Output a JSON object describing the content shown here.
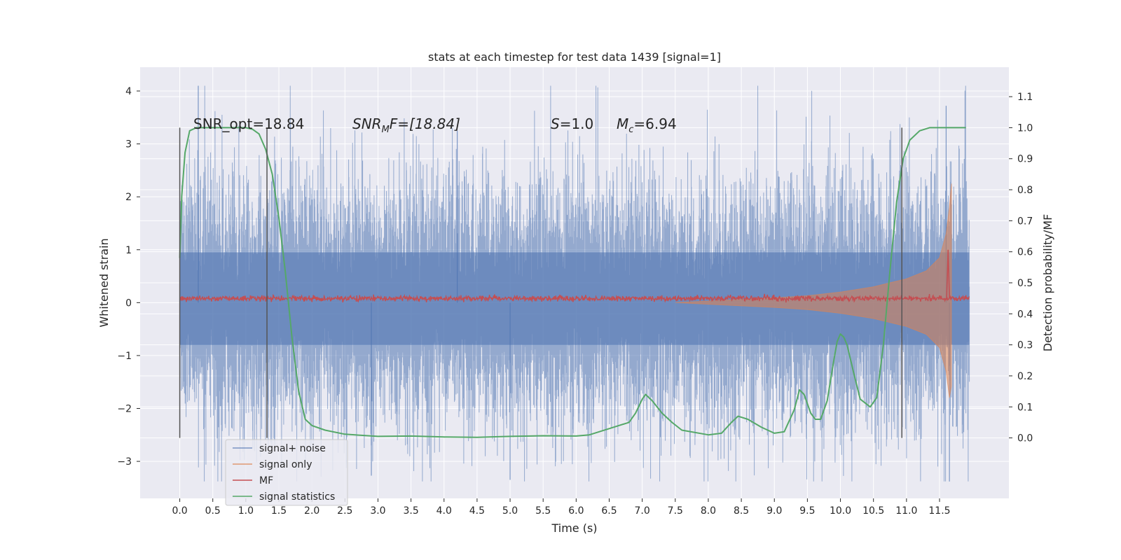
{
  "chart_data": {
    "type": "line",
    "title": "stats at each timestep for test data 1439 [signal=1]",
    "xlabel": "Time (s)",
    "ylabel_left": "Whitened strain",
    "ylabel_right": "Detection probability/MF",
    "xlim": [
      -0.6,
      12.55
    ],
    "ylim_left": [
      -3.7,
      4.45
    ],
    "ylim_right": [
      -0.195,
      1.195
    ],
    "x_ticks": [
      "0.0",
      "0.5",
      "1.0",
      "1.5",
      "2.0",
      "2.5",
      "3.0",
      "3.5",
      "4.0",
      "4.5",
      "5.0",
      "5.5",
      "6.0",
      "6.5",
      "7.0",
      "7.5",
      "8.0",
      "8.5",
      "9.0",
      "9.5",
      "10.0",
      "10.5",
      "11.0",
      "11.5"
    ],
    "y_ticks_left": [
      "−3",
      "−2",
      "−1",
      "0",
      "1",
      "2",
      "3",
      "4"
    ],
    "y_ticks_right": [
      "0.0",
      "0.1",
      "0.2",
      "0.3",
      "0.4",
      "0.5",
      "0.6",
      "0.7",
      "0.8",
      "0.9",
      "1.0",
      "1.1"
    ],
    "grid": true,
    "legend_position": "lower-left",
    "colors": {
      "background": "#eaeaf2",
      "signal_noise": "#4c72b0",
      "signal_only": "#dd8452",
      "mf": "#c44e52",
      "statistics": "#55a868",
      "markers": "#555555"
    },
    "annotations": {
      "snr_opt": "SNR_opt=18.84",
      "snr_mf_name": "SNR",
      "snr_mf_sub": "M",
      "snr_mf_rest": "F=[18.84]",
      "s_name": "S",
      "s_value": "=1.0",
      "mc_name": "M",
      "mc_sub": "c",
      "mc_value": "=6.94"
    },
    "vertical_markers_x": [
      0.0,
      1.32,
      10.93
    ],
    "series": [
      {
        "name": "signal+ noise",
        "axis": "left",
        "envelope": {
          "x_start": 0.0,
          "x_end": 11.95,
          "typical_amplitude": 1.5,
          "min": -3.38,
          "max": 4.1
        }
      },
      {
        "name": "signal only",
        "axis": "left",
        "envelope": {
          "x": [
            7.5,
            8.0,
            8.5,
            9.0,
            9.5,
            10.0,
            10.5,
            11.0,
            11.3,
            11.5,
            11.6,
            11.65,
            11.68
          ],
          "amplitude": [
            0.0,
            0.03,
            0.06,
            0.09,
            0.13,
            0.2,
            0.3,
            0.45,
            0.6,
            0.85,
            1.3,
            1.8,
            2.25
          ]
        }
      },
      {
        "name": "MF",
        "axis": "left",
        "baseline": 0.08,
        "noise_amplitude": 0.05,
        "peak": {
          "x": 11.63,
          "y": 1.0
        }
      },
      {
        "name": "signal statistics",
        "axis": "right",
        "x": [
          0.0,
          0.03,
          0.08,
          0.15,
          0.25,
          0.4,
          0.6,
          0.8,
          1.0,
          1.1,
          1.2,
          1.3,
          1.4,
          1.5,
          1.6,
          1.7,
          1.8,
          1.9,
          2.0,
          2.2,
          2.5,
          3.0,
          3.5,
          4.0,
          4.5,
          5.0,
          5.5,
          6.0,
          6.2,
          6.5,
          6.8,
          6.9,
          7.0,
          7.05,
          7.15,
          7.3,
          7.45,
          7.6,
          8.0,
          8.2,
          8.35,
          8.45,
          8.6,
          8.8,
          9.0,
          9.15,
          9.3,
          9.38,
          9.45,
          9.55,
          9.62,
          9.7,
          9.8,
          9.9,
          9.95,
          10.0,
          10.05,
          10.1,
          10.2,
          10.3,
          10.45,
          10.55,
          10.65,
          10.75,
          10.85,
          10.95,
          11.05,
          11.2,
          11.35,
          11.5,
          11.65,
          11.9
        ],
        "y": [
          0.58,
          0.78,
          0.92,
          0.99,
          1.0,
          1.0,
          1.0,
          1.0,
          1.0,
          0.995,
          0.98,
          0.93,
          0.85,
          0.71,
          0.53,
          0.32,
          0.15,
          0.06,
          0.04,
          0.025,
          0.012,
          0.005,
          0.006,
          0.003,
          0.002,
          0.005,
          0.007,
          0.006,
          0.01,
          0.03,
          0.05,
          0.08,
          0.125,
          0.14,
          0.12,
          0.08,
          0.05,
          0.025,
          0.01,
          0.015,
          0.05,
          0.07,
          0.06,
          0.035,
          0.015,
          0.02,
          0.09,
          0.155,
          0.14,
          0.08,
          0.06,
          0.06,
          0.12,
          0.25,
          0.31,
          0.335,
          0.325,
          0.3,
          0.21,
          0.125,
          0.1,
          0.13,
          0.3,
          0.54,
          0.76,
          0.9,
          0.96,
          0.99,
          1.0,
          1.0,
          1.0,
          1.0
        ]
      }
    ]
  }
}
